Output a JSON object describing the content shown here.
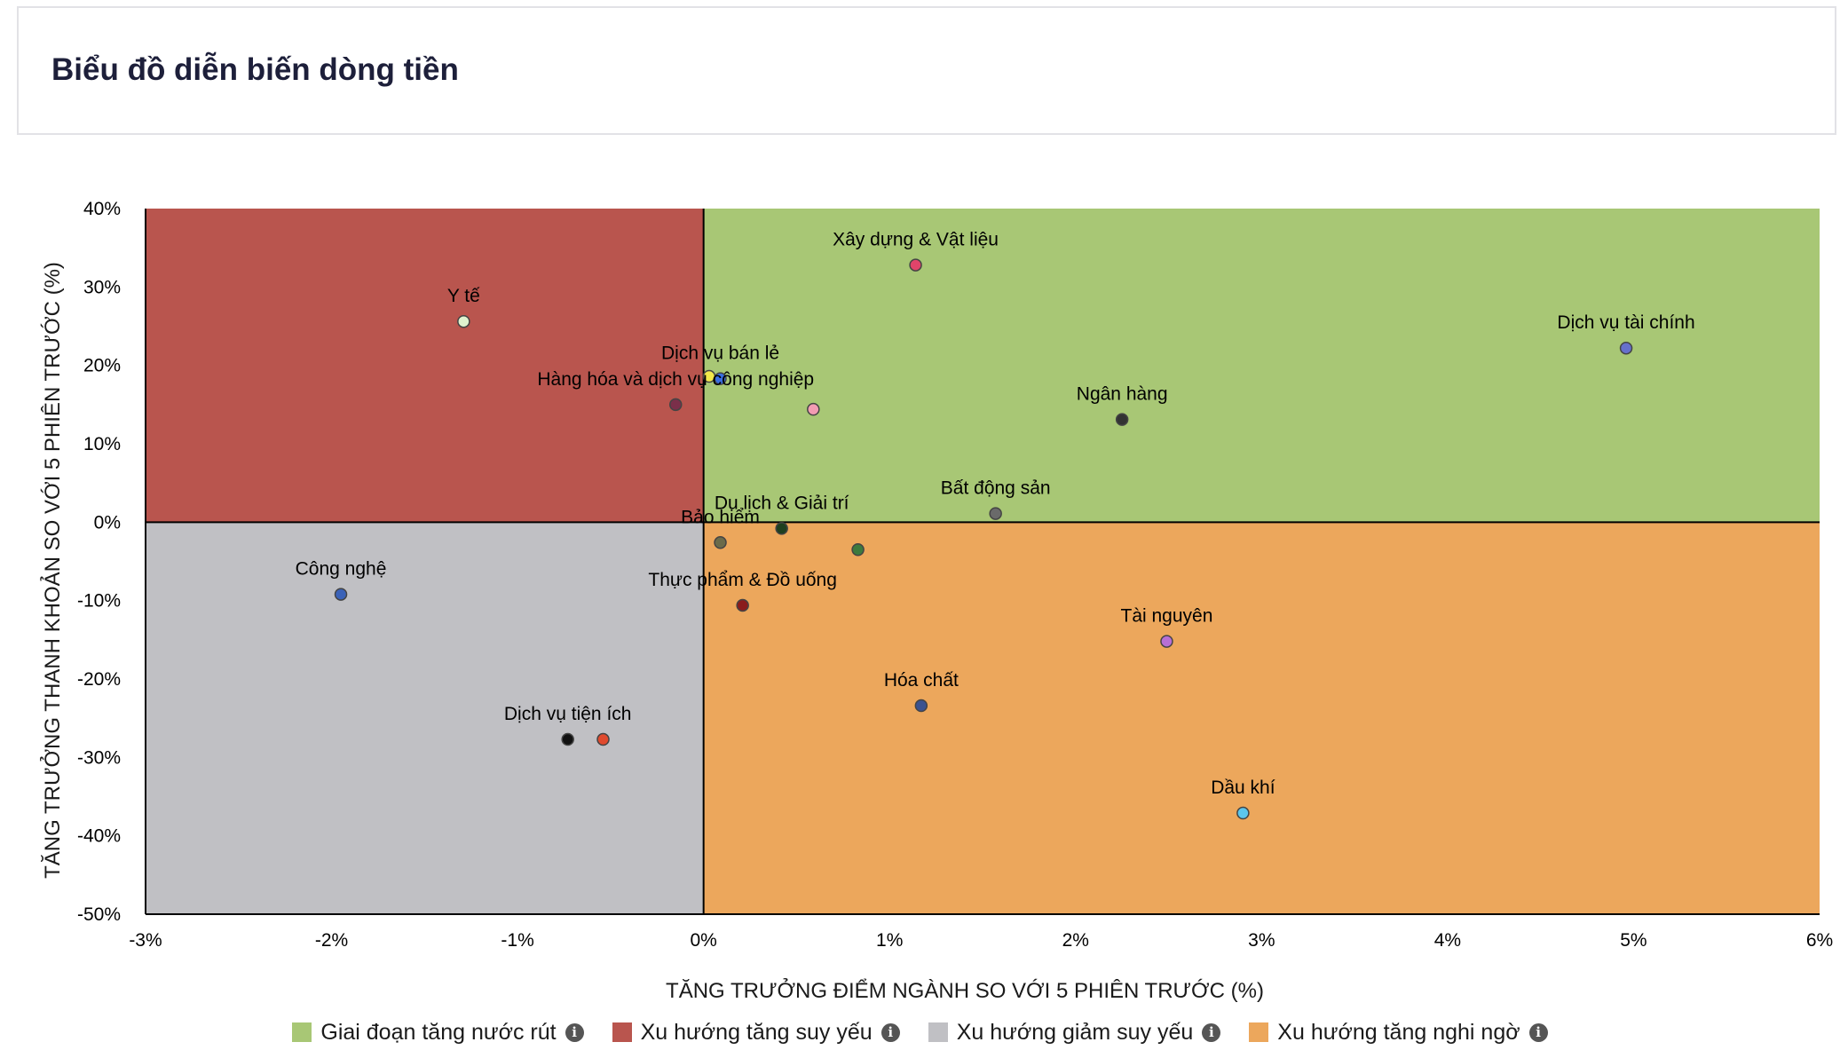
{
  "header": {
    "title": "Biểu đồ diễn biến dòng tiền"
  },
  "chart_data": {
    "type": "scatter",
    "xlabel": "TĂNG TRƯỞNG ĐIỂM NGÀNH SO VỚI 5 PHIÊN TRƯỚC (%)",
    "ylabel": "TĂNG TRƯỞNG THANH KHOẢN SO VỚI 5 PHIÊN TRƯỚC (%)",
    "xlim": [
      -3,
      6
    ],
    "ylim": [
      -50,
      40
    ],
    "x_ticks": [
      -3,
      -2,
      -1,
      0,
      1,
      2,
      3,
      4,
      5,
      6
    ],
    "y_ticks": [
      40,
      30,
      20,
      10,
      0,
      -10,
      -20,
      -30,
      -40,
      -50
    ],
    "x_tick_labels": [
      "-3%",
      "-2%",
      "-1%",
      "0%",
      "1%",
      "2%",
      "3%",
      "4%",
      "5%",
      "6%"
    ],
    "y_tick_labels": [
      "40%",
      "30%",
      "20%",
      "10%",
      "0%",
      "-10%",
      "-20%",
      "-30%",
      "-40%",
      "-50%"
    ],
    "grid": false,
    "quadrants": [
      {
        "name": "Giai đoạn tăng nước rút",
        "color": "#a8c775",
        "x_range": [
          0,
          6
        ],
        "y_range": [
          0,
          40
        ]
      },
      {
        "name": "Xu hướng tăng suy yếu",
        "color": "#b9554e",
        "x_range": [
          -3,
          0
        ],
        "y_range": [
          0,
          40
        ]
      },
      {
        "name": "Xu hướng giảm suy yếu",
        "color": "#c0c0c4",
        "x_range": [
          -3,
          0
        ],
        "y_range": [
          -50,
          0
        ]
      },
      {
        "name": "Xu hướng tăng nghi ngờ",
        "color": "#eca75c",
        "x_range": [
          0,
          6
        ],
        "y_range": [
          -50,
          0
        ]
      }
    ],
    "legend_placement": "bottom-center",
    "points": [
      {
        "label": "Xây dựng & Vật liệu",
        "x": 1.14,
        "y": 32.8,
        "color": "#e0446a"
      },
      {
        "label": "Y tế",
        "x": -1.29,
        "y": 25.6,
        "color": "#dff2cf"
      },
      {
        "label": "Dịch vụ tài chính",
        "x": 4.96,
        "y": 22.2,
        "color": "#6670cc"
      },
      {
        "label": "Dịch vụ bán lẻ",
        "x": 0.09,
        "y": 18.3,
        "color": "#3a6ee0"
      },
      {
        "label": "",
        "x": 0.03,
        "y": 18.6,
        "color": "#f2e84a"
      },
      {
        "label": "Hàng hóa và dịch vụ công nghiệp",
        "x": -0.15,
        "y": 15.0,
        "color": "#7a2f4a"
      },
      {
        "label": "",
        "x": 0.59,
        "y": 14.4,
        "color": "#f29cb2"
      },
      {
        "label": "Ngân hàng",
        "x": 2.25,
        "y": 13.1,
        "color": "#333333"
      },
      {
        "label": "Bất động sản",
        "x": 1.57,
        "y": 1.1,
        "color": "#6a6a6a"
      },
      {
        "label": "Du lịch & Giải trí",
        "x": 0.42,
        "y": -0.8,
        "color": "#1f3f1f"
      },
      {
        "label": "Bảo hiểm",
        "x": 0.09,
        "y": -2.6,
        "color": "#6b6b4a"
      },
      {
        "label": "",
        "x": 0.83,
        "y": -3.5,
        "color": "#3d7a3d"
      },
      {
        "label": "Công nghệ",
        "x": -1.95,
        "y": -9.2,
        "color": "#3a62b8"
      },
      {
        "label": "Thực phẩm & Đồ uống",
        "x": 0.21,
        "y": -10.6,
        "color": "#8a1c1c"
      },
      {
        "label": "Tài nguyên",
        "x": 2.49,
        "y": -15.2,
        "color": "#b76fd6"
      },
      {
        "label": "Hóa chất",
        "x": 1.17,
        "y": -23.4,
        "color": "#3a5290"
      },
      {
        "label": "Dịch vụ tiện ích",
        "x": -0.73,
        "y": -27.7,
        "color": "#111111"
      },
      {
        "label": "",
        "x": -0.54,
        "y": -27.7,
        "color": "#e04a2e"
      },
      {
        "label": "Dầu khí",
        "x": 2.9,
        "y": -37.1,
        "color": "#5cc6ec"
      }
    ]
  }
}
